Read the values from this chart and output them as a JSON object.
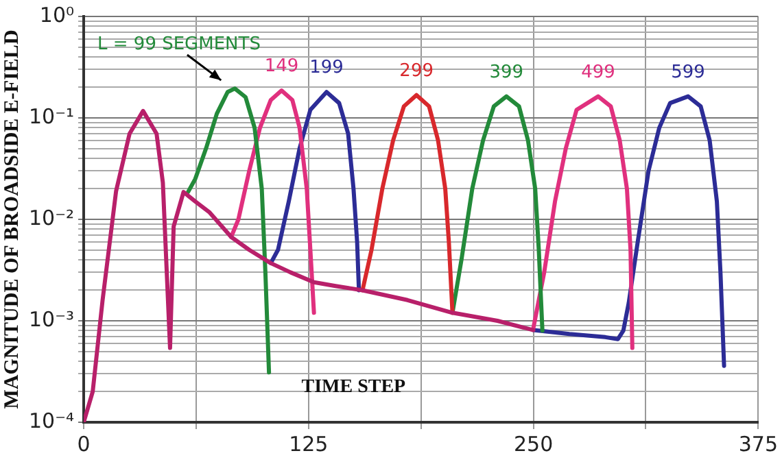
{
  "chart_data": {
    "type": "line",
    "ylabel": "MAGNITUDE OF BROADSIDE E-FIELD",
    "xlabel": "TIME STEP",
    "log": "y",
    "grid": true,
    "legend": false,
    "marker": "none",
    "line_style": "solid",
    "xlim": [
      0,
      375
    ],
    "xticks": [
      0,
      {
        "value": 62.5,
        "label": null
      },
      125,
      {
        "value": 187.5,
        "label": null
      },
      250,
      {
        "value": 312.5,
        "label": null
      },
      375
    ],
    "ylim": [
      0.0001,
      1
    ],
    "yticks": [
      {
        "value": 0.0001,
        "label": "10⁻⁴"
      },
      {
        "value": 0.0002,
        "label": null
      },
      {
        "value": 0.0003,
        "label": null
      },
      {
        "value": 0.0004,
        "label": null
      },
      {
        "value": 0.0005,
        "label": null
      },
      {
        "value": 0.0006,
        "label": null
      },
      {
        "value": 0.0007,
        "label": null
      },
      {
        "value": 0.0008,
        "label": null
      },
      {
        "value": 0.0009,
        "label": null
      },
      {
        "value": 0.001,
        "label": "10⁻³"
      },
      {
        "value": 0.002,
        "label": null
      },
      {
        "value": 0.003,
        "label": null
      },
      {
        "value": 0.004,
        "label": null
      },
      {
        "value": 0.005,
        "label": null
      },
      {
        "value": 0.006,
        "label": null
      },
      {
        "value": 0.007,
        "label": null
      },
      {
        "value": 0.008,
        "label": null
      },
      {
        "value": 0.009,
        "label": null
      },
      {
        "value": 0.01,
        "label": "10⁻²"
      },
      {
        "value": 0.02,
        "label": null
      },
      {
        "value": 0.03,
        "label": null
      },
      {
        "value": 0.04,
        "label": null
      },
      {
        "value": 0.05,
        "label": null
      },
      {
        "value": 0.06,
        "label": null
      },
      {
        "value": 0.07,
        "label": null
      },
      {
        "value": 0.08,
        "label": null
      },
      {
        "value": 0.09,
        "label": null
      },
      {
        "value": 0.1,
        "label": "10⁻¹"
      },
      {
        "value": 0.2,
        "label": null
      },
      {
        "value": 0.3,
        "label": null
      },
      {
        "value": 0.4,
        "label": null
      },
      {
        "value": 0.5,
        "label": null
      },
      {
        "value": 0.6,
        "label": null
      },
      {
        "value": 0.7,
        "label": null
      },
      {
        "value": 0.8,
        "label": null
      },
      {
        "value": 0.9,
        "label": null
      },
      {
        "value": 1,
        "label": "10⁰"
      }
    ],
    "series": [
      {
        "color": "#b8206a",
        "x": [
          0,
          5,
          10.5,
          18,
          25.5,
          33,
          40.5,
          44,
          48,
          50,
          55.5,
          62,
          70,
          82,
          92,
          104,
          115,
          128,
          140,
          155,
          180,
          205,
          230,
          250
        ],
        "values": [
          0.0001,
          0.0002,
          0.0016,
          0.019,
          0.07,
          0.117,
          0.07,
          0.023,
          0.00054,
          0.0085,
          0.0186,
          0.015,
          0.0117,
          0.0067,
          0.005,
          0.0037,
          0.003,
          0.0024,
          0.0022,
          0.002,
          0.0016,
          0.0012,
          0.001,
          0.00081
        ]
      },
      {
        "name": "L = 99 SEGMENTS",
        "color": "#238a3a",
        "x": [
          58,
          62,
          68,
          74,
          80,
          84,
          90,
          95,
          99,
          101,
          103
        ],
        "values": [
          0.0186,
          0.025,
          0.05,
          0.11,
          0.18,
          0.195,
          0.16,
          0.08,
          0.02,
          0.003,
          0.00031
        ]
      },
      {
        "name": "149",
        "color": "#e0307e",
        "x": [
          82,
          86,
          92,
          98,
          104,
          110,
          116,
          120,
          124,
          126,
          128
        ],
        "values": [
          0.0067,
          0.01,
          0.03,
          0.08,
          0.15,
          0.186,
          0.15,
          0.08,
          0.02,
          0.005,
          0.0012
        ]
      },
      {
        "name": "199",
        "color": "#2c2c96",
        "x": [
          104,
          108,
          114,
          120,
          126,
          135,
          142,
          147,
          150,
          152,
          153
        ],
        "values": [
          0.0037,
          0.005,
          0.015,
          0.05,
          0.12,
          0.18,
          0.14,
          0.07,
          0.02,
          0.006,
          0.002
        ]
      },
      {
        "name": "299",
        "color": "#d8282c",
        "x": [
          155,
          160,
          166,
          172,
          178,
          185,
          192,
          197,
          201,
          203,
          205
        ],
        "values": [
          0.002,
          0.005,
          0.02,
          0.06,
          0.13,
          0.168,
          0.13,
          0.06,
          0.02,
          0.006,
          0.0012
        ]
      },
      {
        "name": "399",
        "color": "#238a3a",
        "x": [
          205,
          210,
          216,
          222,
          228,
          235,
          242,
          247,
          251,
          253,
          255
        ],
        "values": [
          0.0012,
          0.004,
          0.02,
          0.06,
          0.13,
          0.163,
          0.13,
          0.06,
          0.02,
          0.005,
          0.0008
        ]
      },
      {
        "name": "499",
        "color": "#e0307e",
        "x": [
          250,
          256,
          262,
          268,
          274,
          286,
          293,
          298,
          302,
          304,
          305
        ],
        "values": [
          0.00085,
          0.003,
          0.015,
          0.05,
          0.12,
          0.163,
          0.13,
          0.06,
          0.02,
          0.005,
          0.00054
        ]
      },
      {
        "name": "599",
        "color": "#2c2c96",
        "x": [
          250,
          270,
          290,
          297,
          300,
          303,
          308,
          314,
          320,
          326,
          336,
          343,
          348,
          352,
          354,
          356
        ],
        "values": [
          0.00081,
          0.00074,
          0.00069,
          0.00066,
          0.0008,
          0.0015,
          0.006,
          0.03,
          0.08,
          0.14,
          0.163,
          0.13,
          0.06,
          0.015,
          0.003,
          0.00036
        ]
      }
    ]
  }
}
